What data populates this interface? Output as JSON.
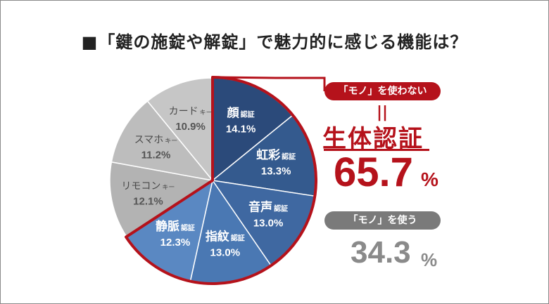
{
  "title": "■「鍵の施錠や解錠」で魅力的に感じる機能は？",
  "chart_data": {
    "type": "pie",
    "unit": "%",
    "slices": [
      {
        "name": "顔",
        "suffix": "認証",
        "value": 14.1,
        "value_label": "14.1%",
        "group": "no-object",
        "color": "#2b4a7a"
      },
      {
        "name": "虹彩",
        "suffix": "認証",
        "value": 13.3,
        "value_label": "13.3%",
        "group": "no-object",
        "color": "#345a8e"
      },
      {
        "name": "音声",
        "suffix": "認証",
        "value": 13.0,
        "value_label": "13.0%",
        "group": "no-object",
        "color": "#3f68a1"
      },
      {
        "name": "指紋",
        "suffix": "認証",
        "value": 13.0,
        "value_label": "13.0%",
        "group": "no-object",
        "color": "#4a78b3"
      },
      {
        "name": "静脈",
        "suffix": "認証",
        "value": 12.3,
        "value_label": "12.3%",
        "group": "no-object",
        "color": "#5a88c2"
      },
      {
        "name": "リモコン",
        "suffix": "キー",
        "value": 12.1,
        "value_label": "12.1%",
        "group": "object",
        "color": "#b3b3b3"
      },
      {
        "name": "スマホ",
        "suffix": "キー",
        "value": 11.2,
        "value_label": "11.2%",
        "group": "object",
        "color": "#bdbdbd"
      },
      {
        "name": "カード",
        "suffix": "キー",
        "value": 10.9,
        "value_label": "10.9%",
        "group": "object",
        "color": "#c6c6c6"
      }
    ],
    "highlight_color": "#b5121b"
  },
  "summary": {
    "no_object_label": "「モノ」を使わない",
    "equals": "||",
    "no_object_title": "生体認証",
    "no_object_value": "65.7",
    "no_object_unit": "%",
    "object_label": "「モノ」を使う",
    "object_value": "34.3",
    "object_unit": "%"
  }
}
